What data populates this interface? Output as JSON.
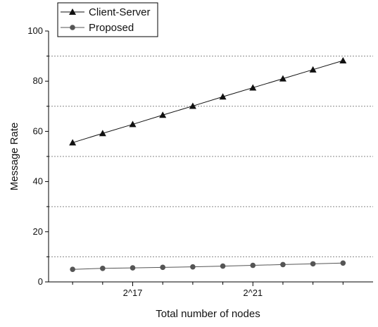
{
  "chart_data": {
    "type": "line",
    "title": "",
    "xlabel": "Total number of nodes",
    "ylabel": "Message Rate",
    "ylim": [
      0,
      100
    ],
    "y_ticks": [
      0,
      20,
      40,
      60,
      80,
      100
    ],
    "grid": "horizontal dotted",
    "legend_position": "top-left",
    "x": [
      15,
      15.5,
      16,
      16.5,
      17,
      17.5,
      18,
      18.5,
      19,
      19.5,
      20,
      20.5,
      21,
      21.5,
      22,
      22.5,
      23,
      23.5,
      24
    ],
    "x_tick_labels": [
      {
        "x": 17,
        "label": "2^17"
      },
      {
        "x": 21,
        "label": "2^21"
      }
    ],
    "series": [
      {
        "name": "Client-Server",
        "marker": "triangle",
        "color": "#111111",
        "values": [
          55.5,
          null,
          59.2,
          null,
          62.8,
          null,
          66.5,
          null,
          70.1,
          null,
          73.8,
          null,
          77.4,
          null,
          81.0,
          null,
          84.6,
          null,
          88.2
        ]
      },
      {
        "name": "Proposed",
        "marker": "circle",
        "color": "#555555",
        "values": [
          5.0,
          null,
          5.4,
          null,
          5.6,
          null,
          5.8,
          null,
          6.0,
          null,
          6.3,
          null,
          6.6,
          null,
          6.9,
          null,
          7.2,
          null,
          7.5
        ]
      }
    ]
  }
}
